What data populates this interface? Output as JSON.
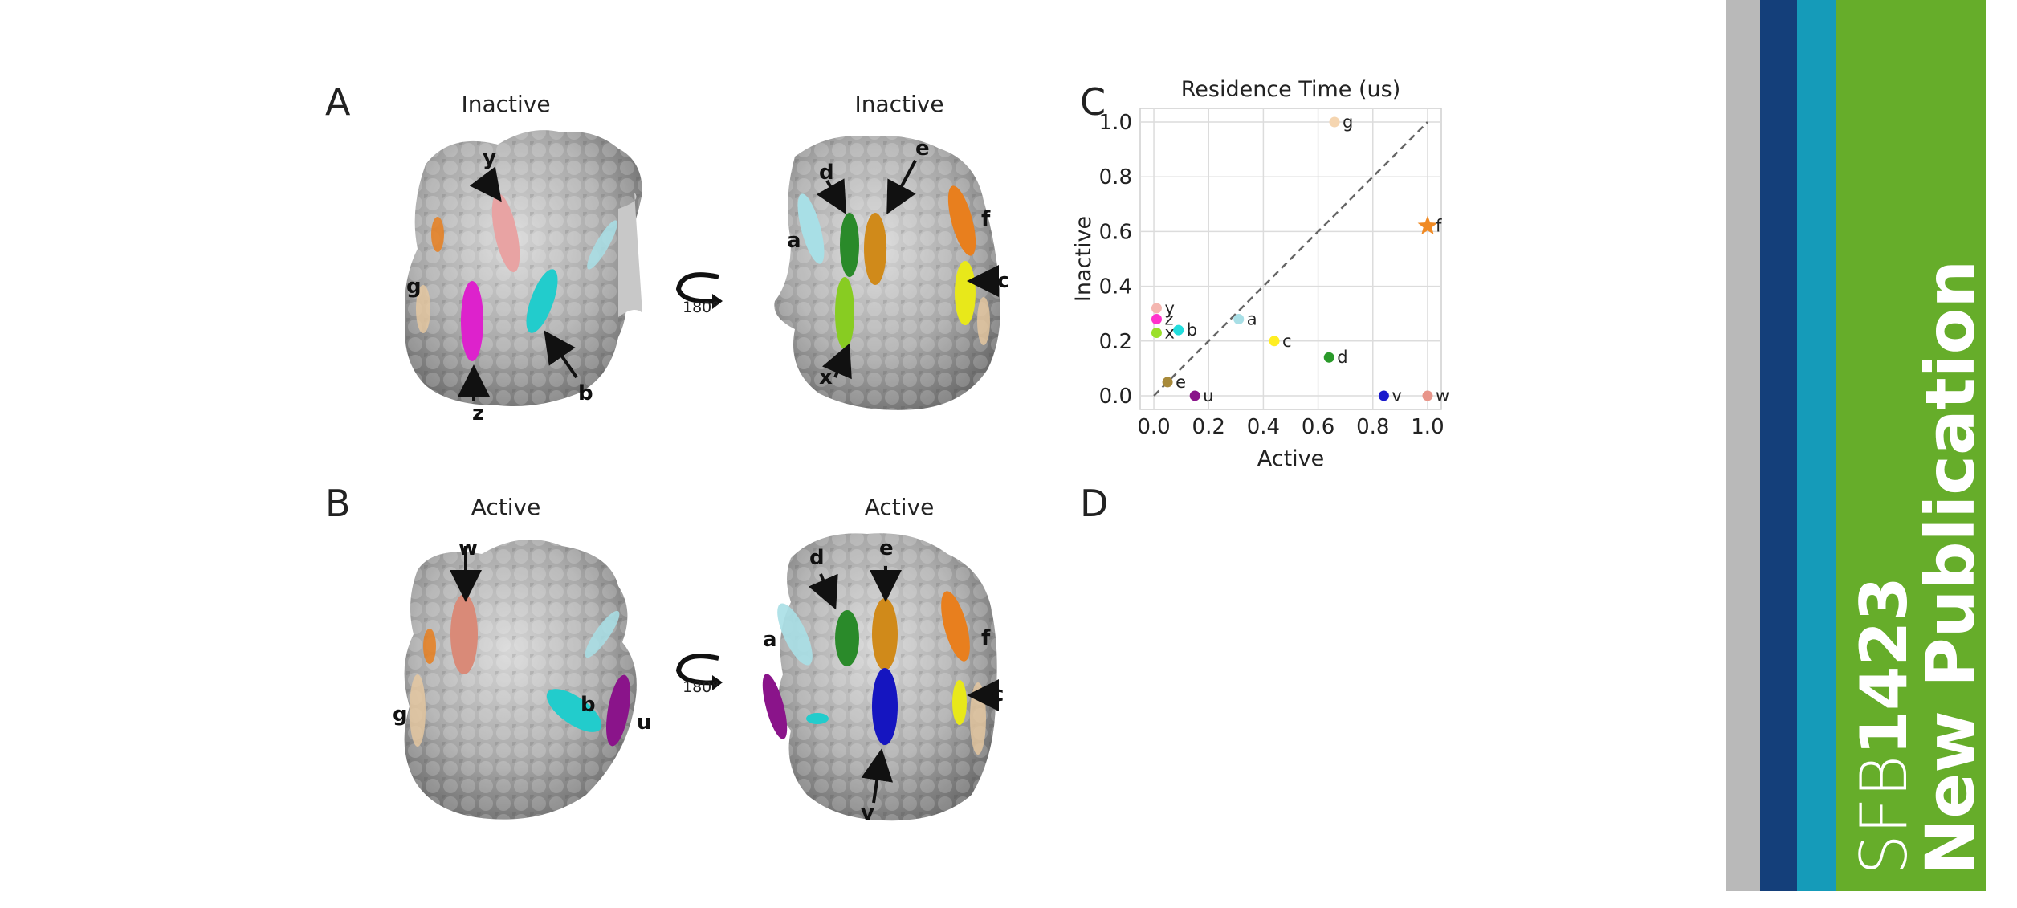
{
  "panels": {
    "A": {
      "letter": "A",
      "left_title": "Inactive",
      "right_title": "Inactive",
      "rotation": "180°"
    },
    "B": {
      "letter": "B",
      "left_title": "Active",
      "right_title": "Active",
      "rotation": "180°"
    },
    "C": {
      "letter": "C"
    },
    "D": {
      "letter": "D"
    }
  },
  "site_labels": {
    "A_left": [
      "y",
      "g",
      "z",
      "b"
    ],
    "A_right": [
      "a",
      "d",
      "e",
      "f",
      "c",
      "x"
    ],
    "B_left": [
      "w",
      "g",
      "b",
      "u"
    ],
    "B_right": [
      "a",
      "d",
      "e",
      "f",
      "c",
      "v"
    ]
  },
  "chart_data": {
    "type": "scatter",
    "title": "Residence Time (us)",
    "xlabel": "Active",
    "ylabel": "Inactive",
    "xlim": [
      -0.05,
      1.05
    ],
    "ylim": [
      -0.05,
      1.05
    ],
    "xticks": [
      "0.0",
      "0.2",
      "0.4",
      "0.6",
      "0.8",
      "1.0"
    ],
    "yticks": [
      "0.0",
      "0.2",
      "0.4",
      "0.6",
      "0.8",
      "1.0"
    ],
    "grid": true,
    "diagonal": "dashed y=x",
    "points": [
      {
        "label": "g",
        "x": 0.66,
        "y": 1.0,
        "color": "#f5d5b0",
        "marker": "circle"
      },
      {
        "label": "f",
        "x": 1.0,
        "y": 0.62,
        "color": "#f08a24",
        "marker": "star"
      },
      {
        "label": "y",
        "x": 0.01,
        "y": 0.32,
        "color": "#f4b6b0",
        "marker": "circle"
      },
      {
        "label": "z",
        "x": 0.01,
        "y": 0.28,
        "color": "#ff33cc",
        "marker": "circle"
      },
      {
        "label": "x",
        "x": 0.01,
        "y": 0.23,
        "color": "#9be02a",
        "marker": "circle"
      },
      {
        "label": "b",
        "x": 0.09,
        "y": 0.24,
        "color": "#22dddd",
        "marker": "circle"
      },
      {
        "label": "a",
        "x": 0.31,
        "y": 0.28,
        "color": "#a8dfe6",
        "marker": "circle"
      },
      {
        "label": "c",
        "x": 0.44,
        "y": 0.2,
        "color": "#ffee22",
        "marker": "circle"
      },
      {
        "label": "d",
        "x": 0.64,
        "y": 0.14,
        "color": "#2a9a2a",
        "marker": "circle"
      },
      {
        "label": "e",
        "x": 0.05,
        "y": 0.05,
        "color": "#a88a3a",
        "marker": "circle"
      },
      {
        "label": "u",
        "x": 0.15,
        "y": 0.0,
        "color": "#8a148a",
        "marker": "circle"
      },
      {
        "label": "v",
        "x": 0.84,
        "y": 0.0,
        "color": "#1a1acc",
        "marker": "circle"
      },
      {
        "label": "w",
        "x": 1.0,
        "y": 0.0,
        "color": "#e8958a",
        "marker": "circle"
      }
    ]
  },
  "banner": {
    "prefix": "SFB",
    "number": "1423",
    "headline": "New Publication",
    "colors": {
      "gray": "#b9b9b9",
      "navy": "#143f7a",
      "teal": "#159bb9",
      "green": "#66ad2a"
    }
  },
  "colors": {
    "site_a": "#a8dfe6",
    "site_b": "#22cccc",
    "site_c": "#e8e81a",
    "site_d": "#2a8a2a",
    "site_e": "#d08a1a",
    "site_f": "#e87f1e",
    "site_g": "#e8c9a0",
    "site_u": "#8a148a",
    "site_v": "#1515c0",
    "site_w": "#d98a78",
    "site_x": "#88cc22",
    "site_y": "#e8a3a3",
    "site_z": "#dd22cc"
  }
}
